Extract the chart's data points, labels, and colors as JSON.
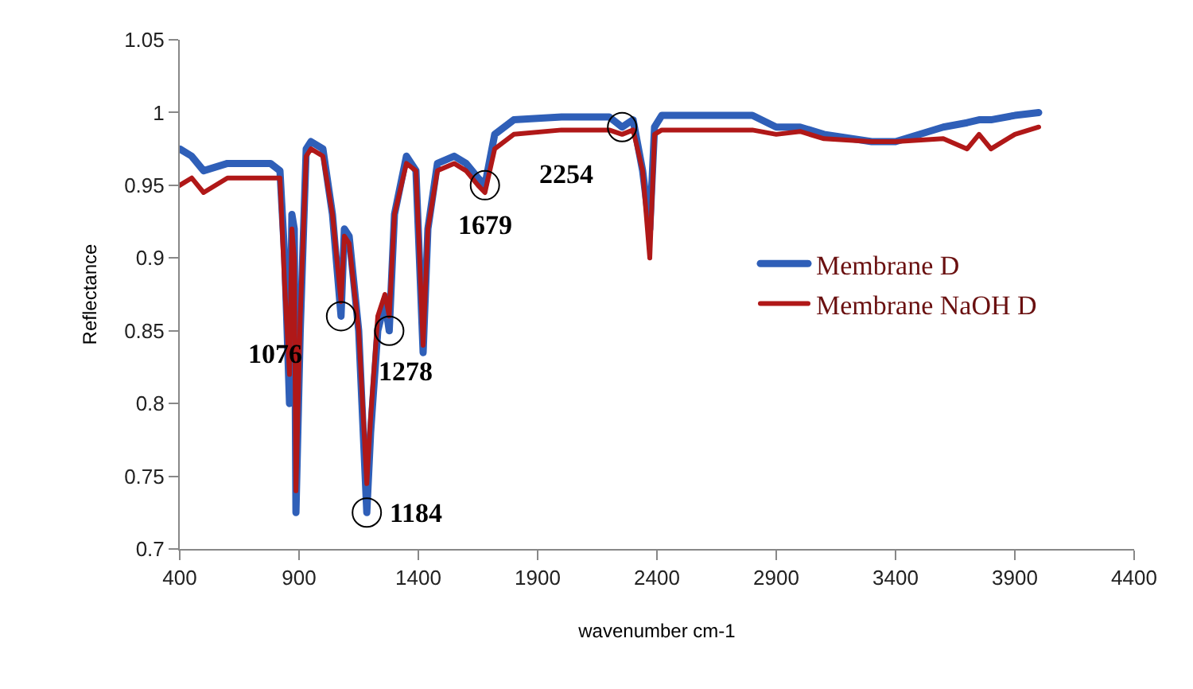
{
  "chart_data": {
    "type": "line",
    "xlabel": "wavenumber cm-1",
    "ylabel": "Reflectance",
    "x": [
      400,
      450,
      500,
      600,
      700,
      780,
      820,
      840,
      860,
      870,
      880,
      887,
      905,
      930,
      950,
      1000,
      1040,
      1076,
      1090,
      1110,
      1150,
      1184,
      1200,
      1230,
      1260,
      1278,
      1300,
      1350,
      1390,
      1420,
      1440,
      1480,
      1550,
      1600,
      1650,
      1679,
      1720,
      1800,
      2000,
      2200,
      2254,
      2300,
      2340,
      2370,
      2390,
      2420,
      2600,
      2800,
      2900,
      3000,
      3100,
      3300,
      3400,
      3600,
      3700,
      3750,
      3800,
      3900,
      4000
    ],
    "series": [
      {
        "name": "Membrane D",
        "color": "#2f5fb8",
        "values": [
          0.975,
          0.97,
          0.96,
          0.965,
          0.965,
          0.965,
          0.96,
          0.9,
          0.8,
          0.93,
          0.92,
          0.725,
          0.85,
          0.975,
          0.98,
          0.975,
          0.93,
          0.86,
          0.92,
          0.915,
          0.85,
          0.725,
          0.78,
          0.85,
          0.87,
          0.85,
          0.93,
          0.97,
          0.96,
          0.835,
          0.92,
          0.965,
          0.97,
          0.965,
          0.955,
          0.95,
          0.985,
          0.995,
          0.997,
          0.997,
          0.99,
          0.995,
          0.96,
          0.92,
          0.99,
          0.998,
          0.998,
          0.998,
          0.99,
          0.99,
          0.985,
          0.98,
          0.98,
          0.99,
          0.993,
          0.995,
          0.995,
          0.998,
          1.0
        ]
      },
      {
        "name": "Membrane NaOH D",
        "color": "#b01818",
        "values": [
          0.95,
          0.955,
          0.945,
          0.955,
          0.955,
          0.955,
          0.955,
          0.88,
          0.82,
          0.92,
          0.9,
          0.74,
          0.86,
          0.97,
          0.975,
          0.97,
          0.93,
          0.87,
          0.915,
          0.91,
          0.85,
          0.745,
          0.79,
          0.86,
          0.875,
          0.86,
          0.93,
          0.965,
          0.96,
          0.84,
          0.92,
          0.96,
          0.965,
          0.96,
          0.95,
          0.945,
          0.975,
          0.985,
          0.988,
          0.988,
          0.985,
          0.988,
          0.96,
          0.9,
          0.985,
          0.988,
          0.988,
          0.988,
          0.985,
          0.987,
          0.982,
          0.98,
          0.98,
          0.982,
          0.975,
          0.985,
          0.975,
          0.985,
          0.99
        ]
      }
    ],
    "annotations": [
      {
        "text": "1076",
        "x": 1076,
        "y": 0.86
      },
      {
        "text": "1184",
        "x": 1184,
        "y": 0.725
      },
      {
        "text": "1278",
        "x": 1278,
        "y": 0.85
      },
      {
        "text": "1679",
        "x": 1679,
        "y": 0.95
      },
      {
        "text": "2254",
        "x": 2254,
        "y": 0.99
      }
    ],
    "xlim": [
      400,
      4400
    ],
    "xticks": [
      400,
      900,
      1400,
      1900,
      2400,
      2900,
      3400,
      3900,
      4400
    ],
    "ylim": [
      0.7,
      1.05
    ],
    "yticks": [
      {
        "value": 0.7,
        "label": "0.7"
      },
      0.75,
      {
        "value": 0.8,
        "label": "0.8"
      },
      0.85,
      {
        "value": 0.9,
        "label": "0.9"
      },
      0.95,
      {
        "value": 1.0,
        "label": "1"
      },
      1.05
    ],
    "legend": "right",
    "marker": "none",
    "line_style": "solid"
  }
}
